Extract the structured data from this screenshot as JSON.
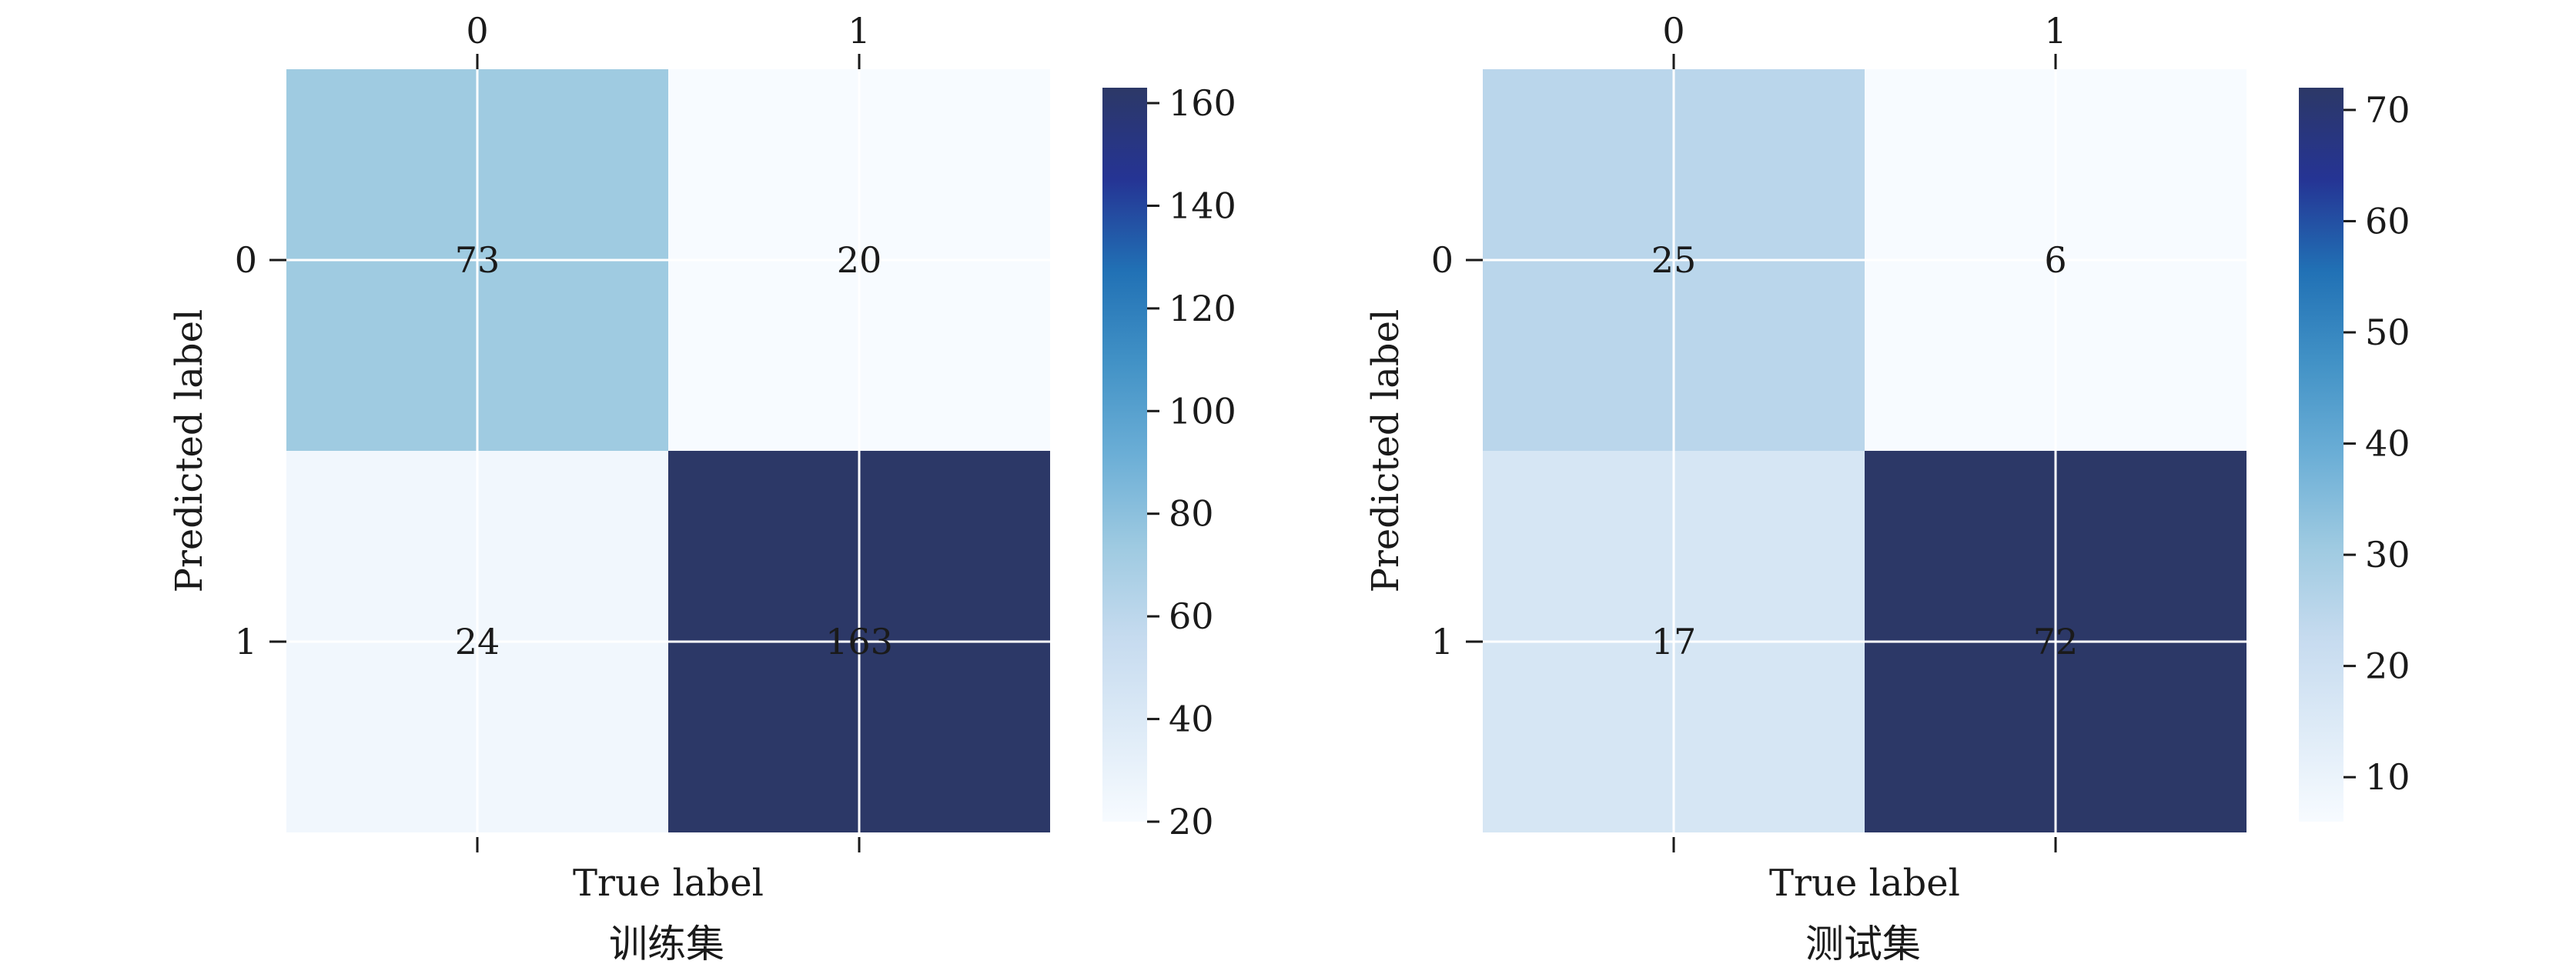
{
  "chart_data": [
    {
      "type": "heatmap",
      "title": "训练集",
      "xlabel": "True label",
      "ylabel": "Predicted label",
      "x_categories": [
        "0",
        "1"
      ],
      "y_categories": [
        "0",
        "1"
      ],
      "matrix": [
        [
          73,
          20
        ],
        [
          24,
          163
        ]
      ],
      "colorbar": {
        "range": [
          20,
          163
        ],
        "ticks": [
          "20",
          "40",
          "60",
          "80",
          "100",
          "120",
          "140",
          "160"
        ]
      }
    },
    {
      "type": "heatmap",
      "title": "测试集",
      "xlabel": "True label",
      "ylabel": "Predicted label",
      "x_categories": [
        "0",
        "1"
      ],
      "y_categories": [
        "0",
        "1"
      ],
      "matrix": [
        [
          25,
          6
        ],
        [
          17,
          72
        ]
      ],
      "colorbar": {
        "range": [
          6,
          72
        ],
        "ticks": [
          "10",
          "20",
          "30",
          "40",
          "50",
          "60",
          "70"
        ]
      }
    }
  ],
  "colors": {
    "colormap": "Blues",
    "grid_lines": "#ffffff",
    "light_text": "#ffffff",
    "dark_text": "#1a1a1a"
  }
}
